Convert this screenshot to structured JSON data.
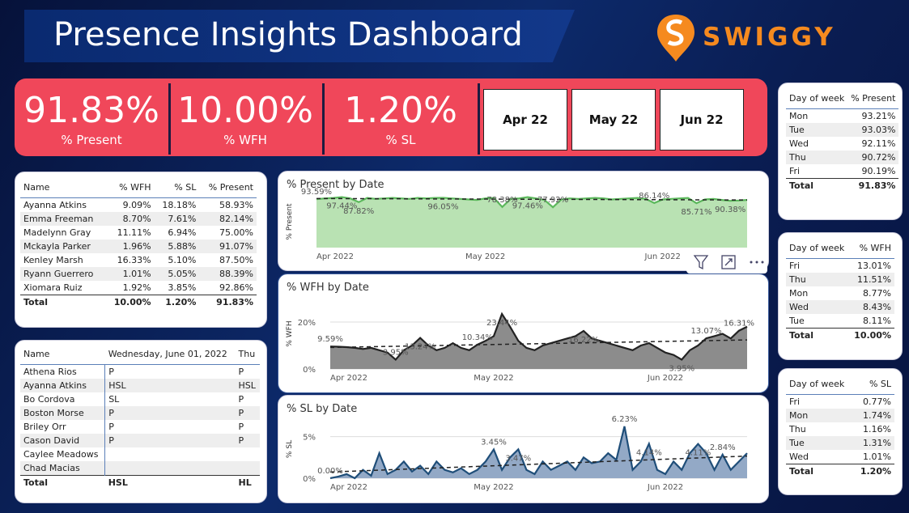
{
  "header": {
    "title": "Presence Insights Dashboard",
    "logo": "SWIGGY"
  },
  "kpis": [
    {
      "value": "91.83%",
      "label": "% Present"
    },
    {
      "value": "10.00%",
      "label": "% WFH"
    },
    {
      "value": "1.20%",
      "label": "% SL"
    }
  ],
  "slicer": [
    "Apr 22",
    "May 22",
    "Jun 22"
  ],
  "employee_table": {
    "columns": [
      "Name",
      "% WFH",
      "% SL",
      "% Present"
    ],
    "rows": [
      [
        "Ayanna Atkins",
        "9.09%",
        "18.18%",
        "58.93%"
      ],
      [
        "Emma Freeman",
        "8.70%",
        "7.61%",
        "82.14%"
      ],
      [
        "Madelynn Gray",
        "11.11%",
        "6.94%",
        "75.00%"
      ],
      [
        "Mckayla Parker",
        "1.96%",
        "5.88%",
        "91.07%"
      ],
      [
        "Kenley Marsh",
        "16.33%",
        "5.10%",
        "87.50%"
      ],
      [
        "Ryann Guerrero",
        "1.01%",
        "5.05%",
        "88.39%"
      ],
      [
        "Xiomara Ruiz",
        "1.92%",
        "3.85%",
        "92.86%"
      ]
    ],
    "total": [
      "Total",
      "10.00%",
      "1.20%",
      "91.83%"
    ]
  },
  "attendance_matrix": {
    "columns": [
      "Name",
      "Wednesday, June 01, 2022",
      "Thu"
    ],
    "rows": [
      [
        "Athena Rios",
        "P",
        "P"
      ],
      [
        "Ayanna Atkins",
        "HSL",
        "HSL"
      ],
      [
        "Bo Cordova",
        "SL",
        "P"
      ],
      [
        "Boston Morse",
        "P",
        "P"
      ],
      [
        "Briley Orr",
        "P",
        "P"
      ],
      [
        "Cason David",
        "P",
        "P"
      ],
      [
        "Caylee Meadows"
      ],
      [
        "Chad Macias"
      ]
    ],
    "total": [
      "Total",
      "HSL",
      "HL"
    ]
  },
  "day_tables": [
    {
      "columns": [
        "Day of week",
        "% Present"
      ],
      "rows": [
        [
          "Mon",
          "93.21%"
        ],
        [
          "Tue",
          "93.03%"
        ],
        [
          "Wed",
          "92.11%"
        ],
        [
          "Thu",
          "90.72%"
        ],
        [
          "Fri",
          "90.19%"
        ]
      ],
      "total": [
        "Total",
        "91.83%"
      ]
    },
    {
      "columns": [
        "Day of week",
        "% WFH"
      ],
      "rows": [
        [
          "Fri",
          "13.01%"
        ],
        [
          "Thu",
          "11.51%"
        ],
        [
          "Mon",
          "8.77%"
        ],
        [
          "Wed",
          "8.43%"
        ],
        [
          "Tue",
          "8.11%"
        ]
      ],
      "total": [
        "Total",
        "10.00%"
      ]
    },
    {
      "columns": [
        "Day of week",
        "% SL"
      ],
      "rows": [
        [
          "Fri",
          "0.77%"
        ],
        [
          "Mon",
          "1.74%"
        ],
        [
          "Thu",
          "1.16%"
        ],
        [
          "Tue",
          "1.31%"
        ],
        [
          "Wed",
          "1.01%"
        ]
      ],
      "total": [
        "Total",
        "1.20%"
      ]
    }
  ],
  "charts": [
    {
      "type": "area",
      "title": "% Present by Date",
      "y_label": "% Present",
      "color": "#5cb85c",
      "fill": "#b9e2b3",
      "xlim": [
        0,
        51
      ],
      "xticks": [
        {
          "value": 0,
          "label": "Apr 2022"
        },
        {
          "value": 20,
          "label": "May 2022"
        },
        {
          "value": 41,
          "label": "Jun 2022"
        }
      ],
      "ylim": [
        0,
        100
      ],
      "yticks": [],
      "values": [
        93.59,
        95,
        96,
        97.44,
        95,
        87.82,
        96,
        94,
        95,
        96,
        95,
        94,
        96,
        95,
        96,
        96.05,
        95,
        94,
        93,
        92,
        95,
        96,
        78.38,
        94,
        95,
        97.46,
        95,
        92,
        77.92,
        93,
        95,
        94,
        95,
        96,
        95,
        93,
        94,
        95,
        96,
        94,
        86.14,
        93,
        94,
        95,
        96,
        85.71,
        93,
        94,
        92,
        90.38,
        91,
        92
      ],
      "value_labels": [
        "93.59%",
        null,
        null,
        "97.44%",
        null,
        "87.82%",
        null,
        null,
        null,
        null,
        null,
        null,
        null,
        null,
        null,
        "96.05%",
        null,
        null,
        null,
        null,
        null,
        null,
        "78.38%",
        null,
        null,
        "97.46%",
        null,
        null,
        "77.92%",
        null,
        null,
        null,
        null,
        null,
        null,
        null,
        null,
        null,
        null,
        null,
        "86.14%",
        null,
        null,
        null,
        null,
        "85.71%",
        null,
        null,
        null,
        "90.38%",
        null,
        null
      ]
    },
    {
      "type": "area",
      "title": "% WFH by Date",
      "y_label": "% WFH",
      "color": "#222222",
      "fill": "#8c8c8c",
      "xlim": [
        0,
        51
      ],
      "xticks": [
        {
          "value": 0,
          "label": "Apr 2022"
        },
        {
          "value": 20,
          "label": "May 2022"
        },
        {
          "value": 41,
          "label": "Jun 2022"
        }
      ],
      "ylim": [
        0,
        30
      ],
      "yticks": [
        {
          "value": 0,
          "label": "0%"
        },
        {
          "value": 20,
          "label": "20%"
        }
      ],
      "values": [
        9.59,
        9.5,
        9.3,
        9,
        8.5,
        9,
        8,
        7,
        3.95,
        8,
        10,
        13.24,
        10,
        8,
        9,
        11,
        9,
        8,
        10.34,
        12,
        14,
        23.44,
        18,
        12,
        9,
        8,
        10,
        11,
        12,
        13,
        14,
        16.22,
        13,
        12,
        11,
        10,
        9,
        8,
        10,
        11,
        9,
        7,
        6,
        3.95,
        8,
        10,
        13.07,
        14,
        15,
        13,
        16.31,
        18
      ],
      "value_labels": [
        "9.59%",
        null,
        null,
        null,
        null,
        null,
        null,
        null,
        "3.95%",
        null,
        null,
        "13.24%",
        null,
        null,
        null,
        null,
        null,
        null,
        "10.34%",
        null,
        null,
        "23.44%",
        null,
        null,
        null,
        null,
        null,
        null,
        null,
        null,
        null,
        "16.22%",
        null,
        null,
        null,
        null,
        null,
        null,
        null,
        null,
        null,
        null,
        null,
        "3.95%",
        null,
        null,
        "13.07%",
        null,
        null,
        null,
        "16.31%",
        null
      ]
    },
    {
      "type": "area",
      "title": "% SL by Date",
      "y_label": "% SL",
      "color": "#1f4e79",
      "fill": "#93a9c6",
      "xlim": [
        0,
        51
      ],
      "xticks": [
        {
          "value": 0,
          "label": "Apr 2022"
        },
        {
          "value": 20,
          "label": "May 2022"
        },
        {
          "value": 41,
          "label": "Jun 2022"
        }
      ],
      "ylim": [
        0,
        7
      ],
      "yticks": [
        {
          "value": 0,
          "label": "0%"
        },
        {
          "value": 5,
          "label": "5%"
        }
      ],
      "values": [
        0,
        0.2,
        0.5,
        0,
        1,
        0.3,
        3,
        0.5,
        1,
        2,
        0.8,
        1.5,
        0.5,
        2,
        1,
        0.7,
        1.2,
        0.5,
        1,
        2,
        3.45,
        1,
        2.5,
        3.47,
        1,
        0.5,
        2,
        1,
        1.5,
        2,
        1,
        2.5,
        1.8,
        2,
        3,
        2.2,
        6.23,
        1,
        2,
        4.14,
        1,
        0.5,
        2,
        1,
        3,
        4.11,
        3,
        1,
        2.84,
        1,
        2,
        3
      ],
      "value_labels": [
        "0.00%",
        null,
        null,
        null,
        null,
        null,
        null,
        null,
        null,
        null,
        null,
        null,
        null,
        null,
        null,
        null,
        null,
        null,
        null,
        null,
        "3.45%",
        null,
        null,
        "3.47%",
        null,
        null,
        null,
        null,
        null,
        null,
        null,
        null,
        null,
        null,
        null,
        null,
        "6.23%",
        null,
        null,
        "4.14%",
        null,
        null,
        null,
        null,
        null,
        "4.11%",
        null,
        null,
        "2.84%",
        null,
        null,
        null
      ]
    }
  ]
}
